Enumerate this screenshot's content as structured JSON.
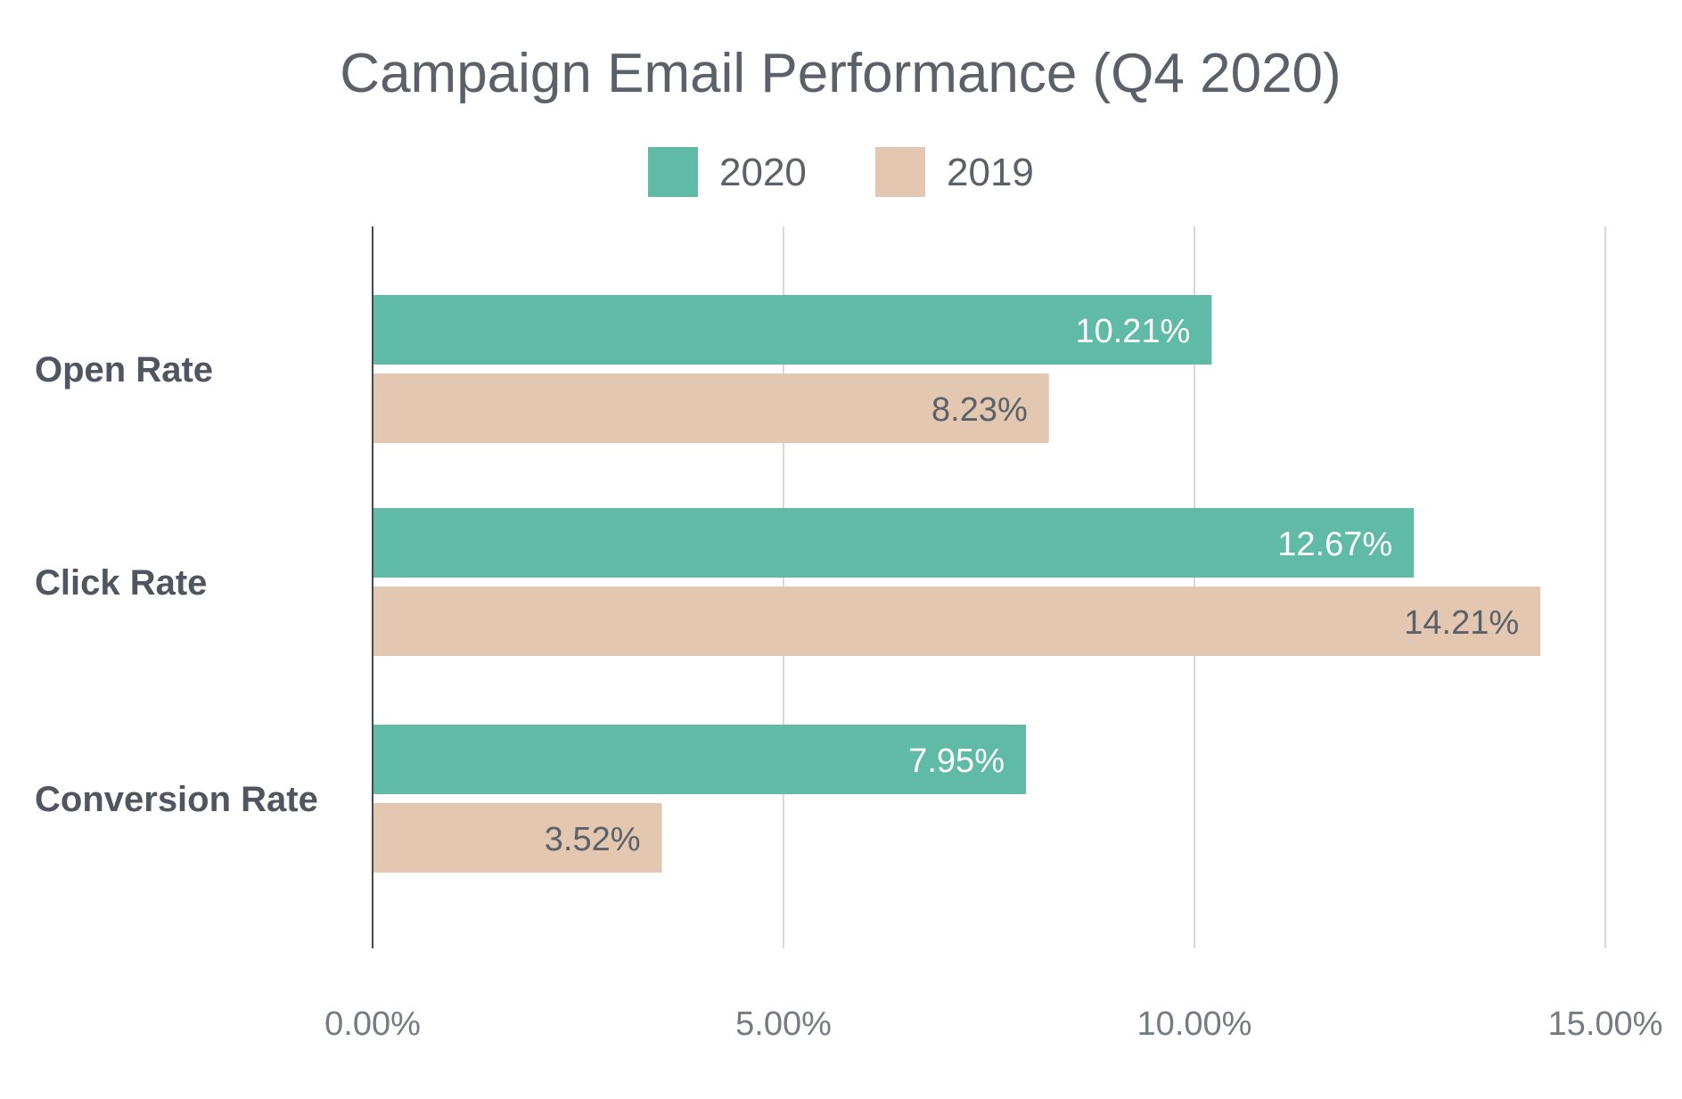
{
  "chart_data": {
    "type": "bar",
    "orientation": "horizontal",
    "title": "Campaign Email Performance (Q4 2020)",
    "categories": [
      "Open Rate",
      "Click Rate",
      "Conversion Rate"
    ],
    "series": [
      {
        "name": "2020",
        "color": "#5fbba5",
        "label_color": "#ffffff",
        "values": [
          10.21,
          12.67,
          7.95
        ],
        "labels": [
          "10.21%",
          "12.67%",
          "7.95%"
        ]
      },
      {
        "name": "2019",
        "color": "#e3c7b1",
        "label_color": "#5b6169",
        "values": [
          8.23,
          14.21,
          3.52
        ],
        "labels": [
          "8.23%",
          "14.21%",
          "3.52%"
        ]
      }
    ],
    "xlim": [
      0,
      15
    ],
    "xticks": [
      0,
      5,
      10,
      15
    ],
    "xtick_labels": [
      "0.00%",
      "5.00%",
      "10.00%",
      "15.00%"
    ],
    "grid": true,
    "legend_position": "top-center"
  }
}
